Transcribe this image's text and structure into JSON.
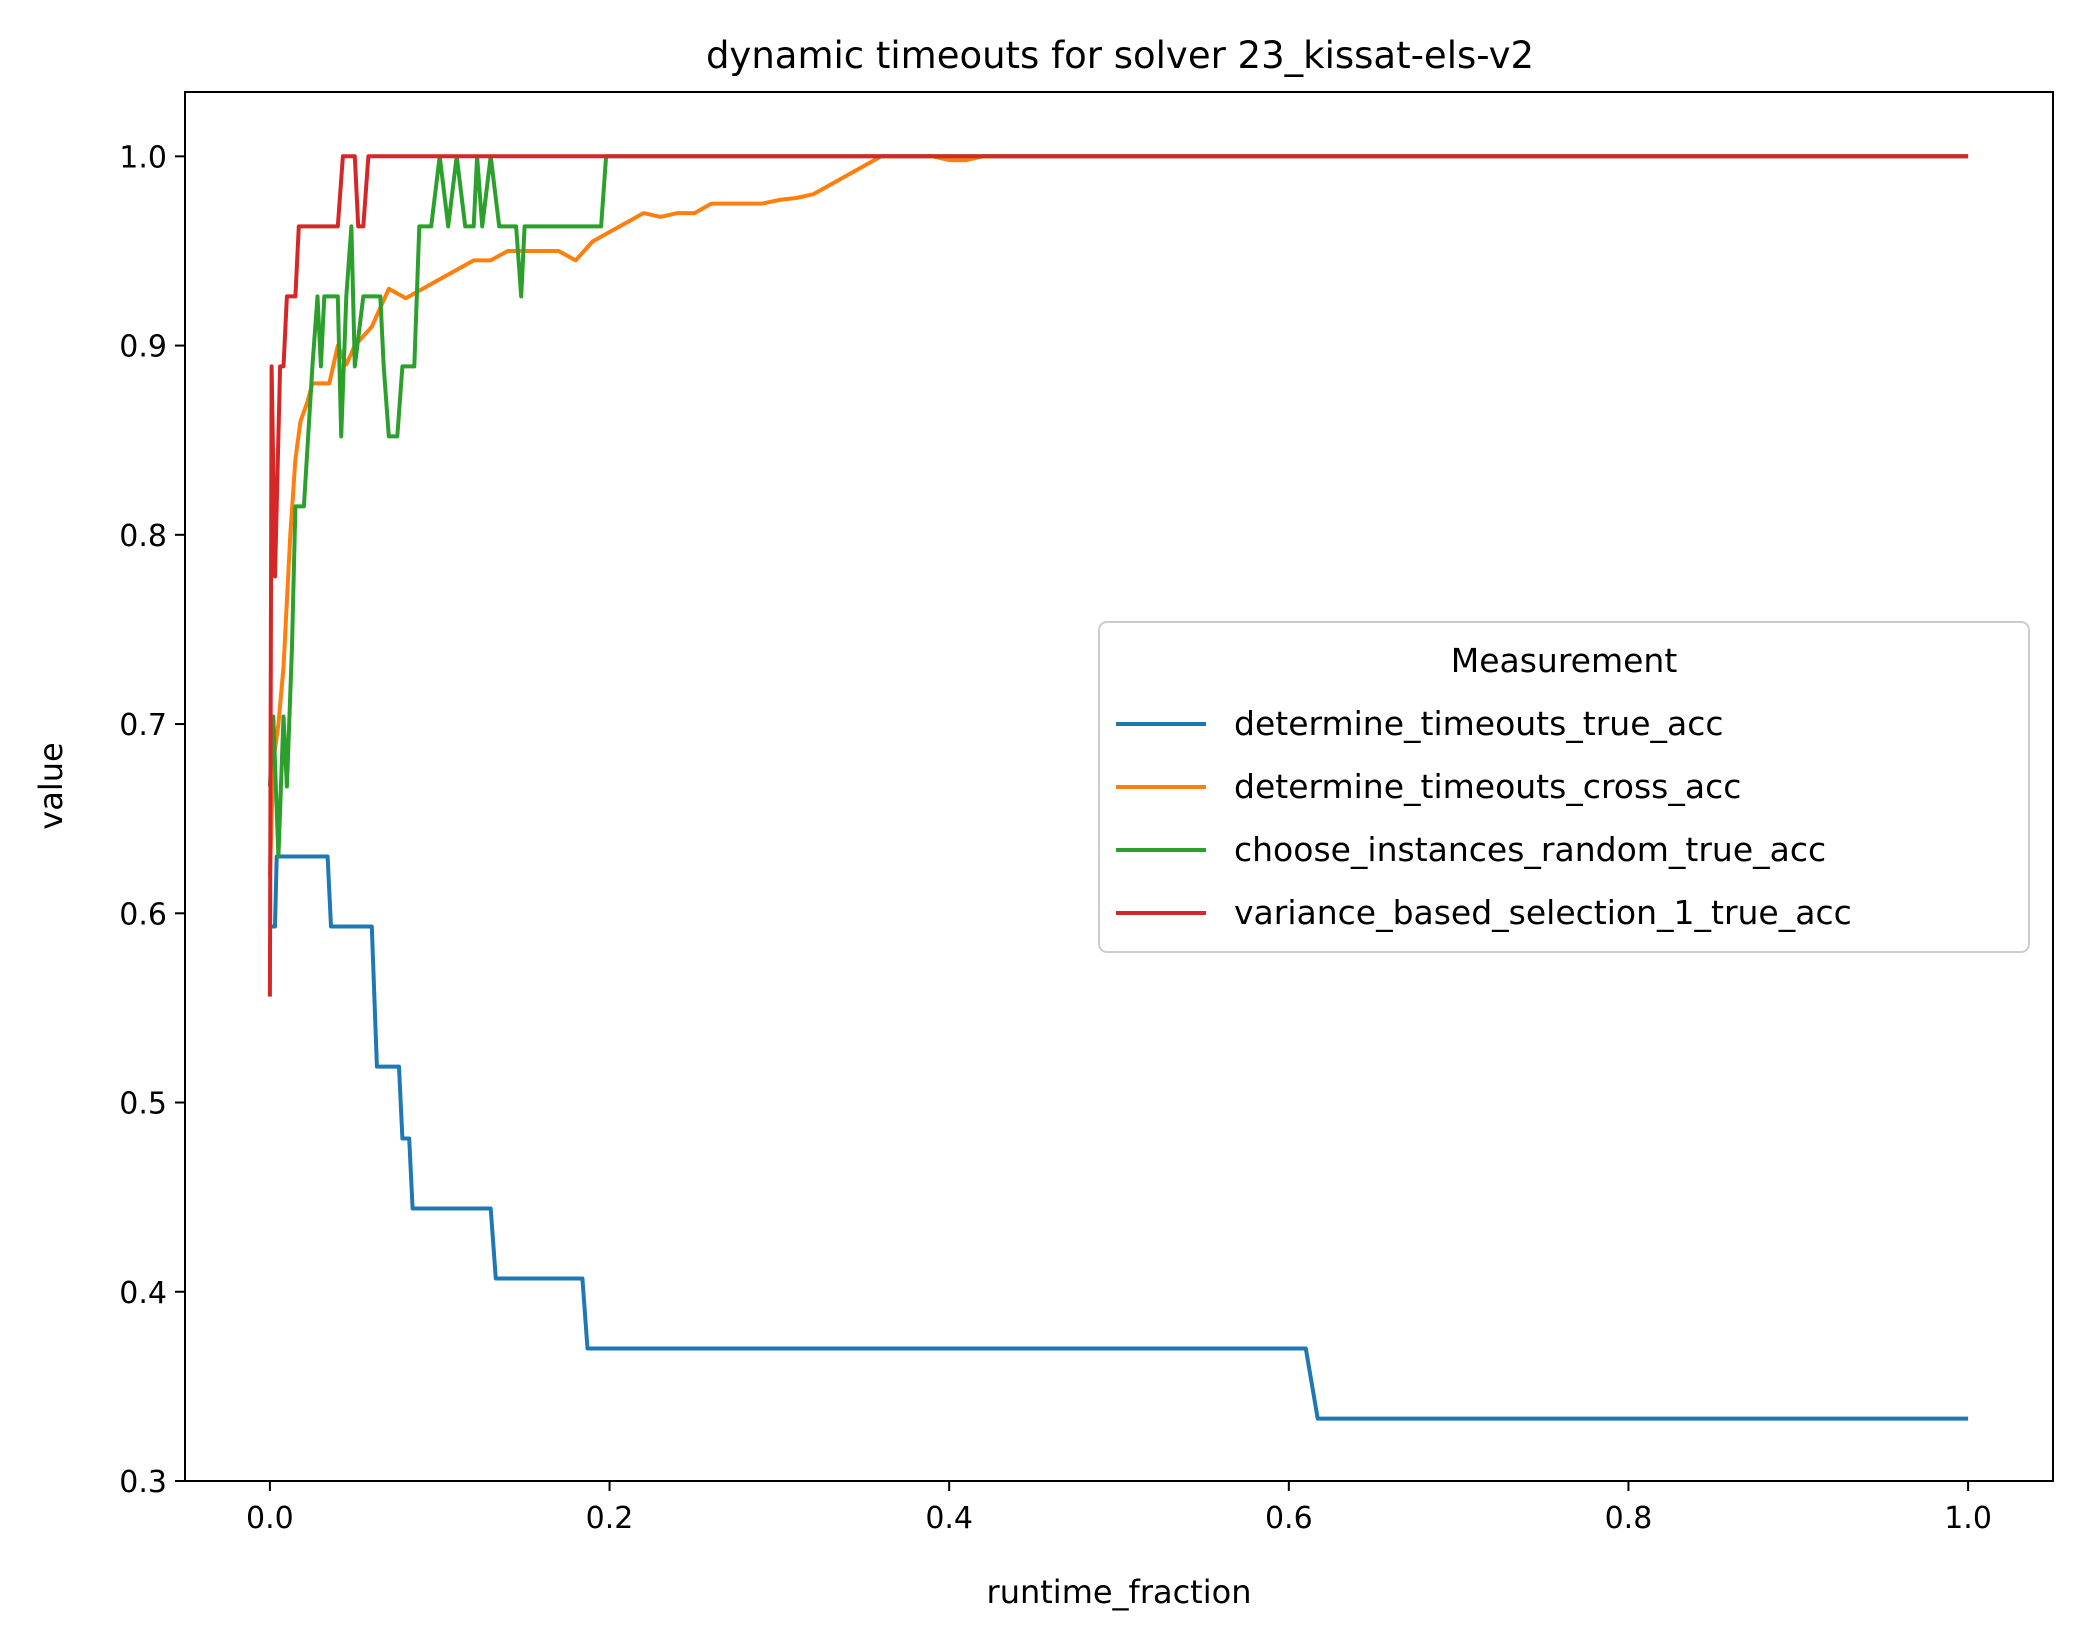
{
  "chart_data": {
    "type": "line",
    "title": "dynamic timeouts for solver 23_kissat-els-v2",
    "xlabel": "runtime_fraction",
    "ylabel": "value",
    "xlim": [
      -0.05,
      1.05
    ],
    "ylim": [
      0.3,
      1.034
    ],
    "xticks": [
      "0.0",
      "0.2",
      "0.4",
      "0.6",
      "0.8",
      "1.0"
    ],
    "yticks": [
      "0.3",
      "0.4",
      "0.5",
      "0.6",
      "0.7",
      "0.8",
      "0.9",
      "1.0"
    ],
    "grid": false,
    "legend": {
      "title": "Measurement",
      "placement": "center-right"
    },
    "series": [
      {
        "name": "determine_timeouts_true_acc",
        "color": "#1f77b4",
        "points": [
          [
            0.0,
            0.593
          ],
          [
            0.003,
            0.593
          ],
          [
            0.004,
            0.63
          ],
          [
            0.034,
            0.63
          ],
          [
            0.036,
            0.593
          ],
          [
            0.06,
            0.593
          ],
          [
            0.063,
            0.519
          ],
          [
            0.076,
            0.519
          ],
          [
            0.078,
            0.481
          ],
          [
            0.082,
            0.481
          ],
          [
            0.084,
            0.444
          ],
          [
            0.13,
            0.444
          ],
          [
            0.133,
            0.407
          ],
          [
            0.184,
            0.407
          ],
          [
            0.187,
            0.37
          ],
          [
            0.61,
            0.37
          ],
          [
            0.617,
            0.333
          ],
          [
            1.0,
            0.333
          ]
        ]
      },
      {
        "name": "determine_timeouts_cross_acc",
        "color": "#ff7f0e",
        "points": [
          [
            0.0,
            0.62
          ],
          [
            0.002,
            0.68
          ],
          [
            0.005,
            0.7
          ],
          [
            0.008,
            0.73
          ],
          [
            0.012,
            0.8
          ],
          [
            0.015,
            0.84
          ],
          [
            0.018,
            0.86
          ],
          [
            0.022,
            0.87
          ],
          [
            0.025,
            0.88
          ],
          [
            0.03,
            0.88
          ],
          [
            0.035,
            0.88
          ],
          [
            0.04,
            0.9
          ],
          [
            0.045,
            0.89
          ],
          [
            0.05,
            0.9
          ],
          [
            0.06,
            0.91
          ],
          [
            0.07,
            0.93
          ],
          [
            0.08,
            0.925
          ],
          [
            0.09,
            0.93
          ],
          [
            0.1,
            0.935
          ],
          [
            0.11,
            0.94
          ],
          [
            0.12,
            0.945
          ],
          [
            0.13,
            0.945
          ],
          [
            0.14,
            0.95
          ],
          [
            0.15,
            0.95
          ],
          [
            0.16,
            0.95
          ],
          [
            0.17,
            0.95
          ],
          [
            0.18,
            0.945
          ],
          [
            0.19,
            0.955
          ],
          [
            0.2,
            0.96
          ],
          [
            0.21,
            0.965
          ],
          [
            0.22,
            0.97
          ],
          [
            0.23,
            0.968
          ],
          [
            0.24,
            0.97
          ],
          [
            0.25,
            0.97
          ],
          [
            0.26,
            0.975
          ],
          [
            0.27,
            0.975
          ],
          [
            0.28,
            0.975
          ],
          [
            0.29,
            0.975
          ],
          [
            0.3,
            0.977
          ],
          [
            0.31,
            0.978
          ],
          [
            0.32,
            0.98
          ],
          [
            0.33,
            0.985
          ],
          [
            0.34,
            0.99
          ],
          [
            0.35,
            0.995
          ],
          [
            0.36,
            1.0
          ],
          [
            0.38,
            1.0
          ],
          [
            0.39,
            1.0
          ],
          [
            0.4,
            0.998
          ],
          [
            0.41,
            0.998
          ],
          [
            0.42,
            1.0
          ],
          [
            1.0,
            1.0
          ]
        ]
      },
      {
        "name": "choose_instances_random_true_acc",
        "color": "#2ca02c",
        "points": [
          [
            0.0,
            0.667
          ],
          [
            0.002,
            0.704
          ],
          [
            0.005,
            0.63
          ],
          [
            0.008,
            0.704
          ],
          [
            0.01,
            0.667
          ],
          [
            0.013,
            0.741
          ],
          [
            0.015,
            0.815
          ],
          [
            0.02,
            0.815
          ],
          [
            0.025,
            0.889
          ],
          [
            0.028,
            0.926
          ],
          [
            0.03,
            0.889
          ],
          [
            0.032,
            0.926
          ],
          [
            0.04,
            0.926
          ],
          [
            0.042,
            0.852
          ],
          [
            0.045,
            0.926
          ],
          [
            0.048,
            0.963
          ],
          [
            0.05,
            0.889
          ],
          [
            0.055,
            0.926
          ],
          [
            0.065,
            0.926
          ],
          [
            0.067,
            0.889
          ],
          [
            0.07,
            0.852
          ],
          [
            0.075,
            0.852
          ],
          [
            0.078,
            0.889
          ],
          [
            0.085,
            0.889
          ],
          [
            0.088,
            0.963
          ],
          [
            0.095,
            0.963
          ],
          [
            0.1,
            1.0
          ],
          [
            0.105,
            0.963
          ],
          [
            0.11,
            1.0
          ],
          [
            0.115,
            0.963
          ],
          [
            0.12,
            0.963
          ],
          [
            0.122,
            1.0
          ],
          [
            0.125,
            0.963
          ],
          [
            0.13,
            1.0
          ],
          [
            0.135,
            0.963
          ],
          [
            0.14,
            0.963
          ],
          [
            0.145,
            0.963
          ],
          [
            0.148,
            0.926
          ],
          [
            0.15,
            0.963
          ],
          [
            0.195,
            0.963
          ],
          [
            0.198,
            1.0
          ],
          [
            1.0,
            1.0
          ]
        ]
      },
      {
        "name": "variance_based_selection_1_true_acc",
        "color": "#d62728",
        "points": [
          [
            0.0,
            0.556
          ],
          [
            0.001,
            0.889
          ],
          [
            0.003,
            0.778
          ],
          [
            0.005,
            0.852
          ],
          [
            0.006,
            0.889
          ],
          [
            0.008,
            0.889
          ],
          [
            0.01,
            0.926
          ],
          [
            0.015,
            0.926
          ],
          [
            0.017,
            0.963
          ],
          [
            0.04,
            0.963
          ],
          [
            0.043,
            1.0
          ],
          [
            0.05,
            1.0
          ],
          [
            0.052,
            0.963
          ],
          [
            0.055,
            0.963
          ],
          [
            0.058,
            1.0
          ],
          [
            1.0,
            1.0
          ]
        ]
      }
    ]
  }
}
